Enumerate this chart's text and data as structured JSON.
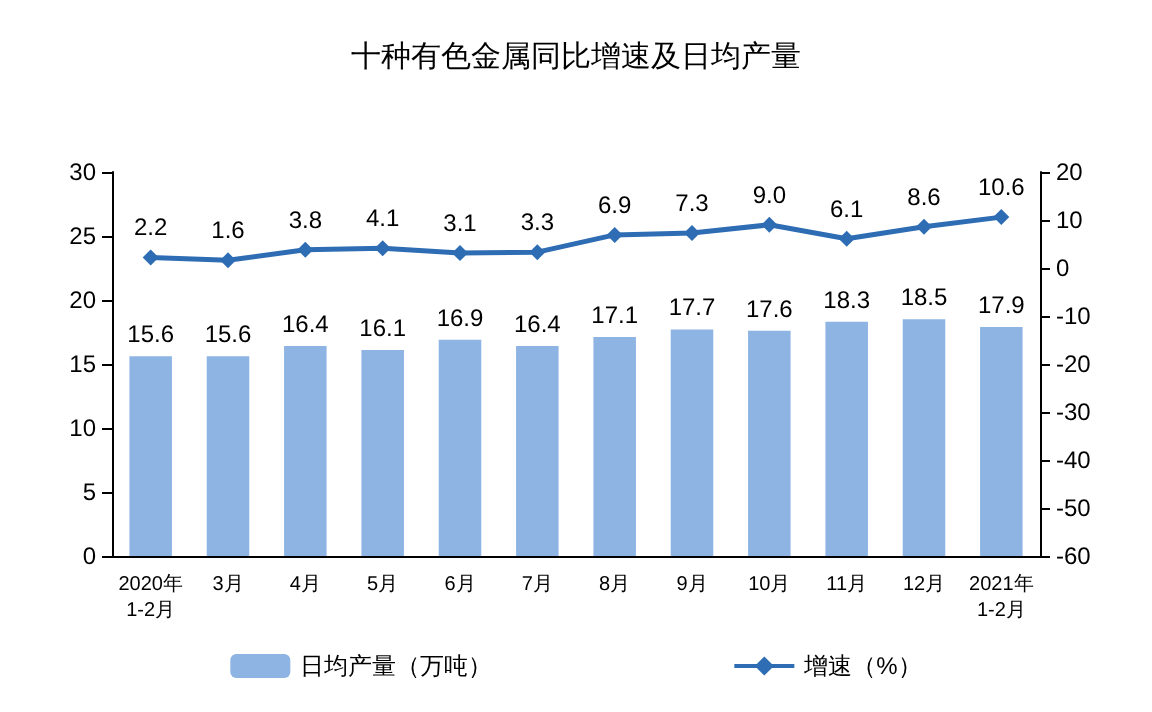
{
  "chart_data": {
    "type": "bar",
    "title": "十种有色金属同比增速及日均产量",
    "categories": [
      "2020年\n1-2月",
      "3月",
      "4月",
      "5月",
      "6月",
      "7月",
      "8月",
      "9月",
      "10月",
      "11月",
      "12月",
      "2021年\n1-2月"
    ],
    "series": [
      {
        "name": "日均产量（万吨）",
        "color": "#8db4e2",
        "values": [
          15.6,
          15.6,
          16.4,
          16.1,
          16.9,
          16.4,
          17.1,
          17.7,
          17.6,
          18.3,
          18.5,
          17.9
        ],
        "value_labels": [
          "15.6",
          "15.6",
          "16.4",
          "16.1",
          "16.9",
          "16.4",
          "17.1",
          "17.7",
          "17.6",
          "18.3",
          "18.5",
          "17.9"
        ]
      },
      {
        "name": "增速（%）",
        "type": "line",
        "axis": "y2",
        "color": "#2e6db4",
        "values": [
          2.2,
          1.6,
          3.8,
          4.1,
          3.1,
          3.3,
          6.9,
          7.3,
          9.0,
          6.1,
          8.6,
          10.6
        ],
        "value_labels": [
          "2.2",
          "1.6",
          "3.8",
          "4.1",
          "3.1",
          "3.3",
          "6.9",
          "7.3",
          "9.0",
          "6.1",
          "8.6",
          "10.6"
        ]
      }
    ],
    "ylim": [
      0,
      30
    ],
    "yticks": [
      0,
      5,
      10,
      15,
      20,
      25,
      30
    ],
    "y2lim": [
      -60,
      20
    ],
    "y2ticks": [
      -60,
      -50,
      -40,
      -30,
      -20,
      -10,
      0,
      10,
      20
    ],
    "legend": "bottom",
    "marker": "diamond",
    "line_style": "solid",
    "grid": false
  }
}
